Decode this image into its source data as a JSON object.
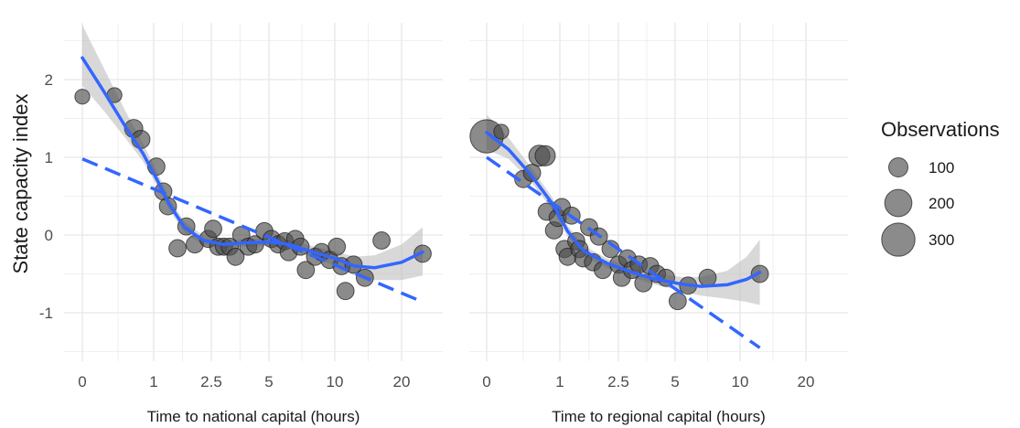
{
  "chart_data": {
    "type": "scatter",
    "ylabel": "State capacity index",
    "ylim": [
      -1.55,
      2.75
    ],
    "y_ticks": [
      {
        "v": 2,
        "label": "2"
      },
      {
        "v": 1,
        "label": "1"
      },
      {
        "v": 0,
        "label": "0"
      },
      {
        "v": -1,
        "label": "-1"
      }
    ],
    "grid": true,
    "x_scale": "transformed (hours)",
    "colors": {
      "points": "#4d4d4d",
      "fit_smooth": "#3366ff",
      "fit_linear": "#3366ff",
      "ribbon": "#bebebe",
      "grid": "#ebebeb"
    },
    "legend": {
      "title": "Observations",
      "placement": "right",
      "entries": [
        {
          "label": "100",
          "value": 100
        },
        {
          "label": "200",
          "value": 200
        },
        {
          "label": "300",
          "value": 300
        }
      ]
    },
    "panels": [
      {
        "xlabel": "Time to national capital (hours)",
        "x_ticks": [
          {
            "v": 0,
            "label": "0"
          },
          {
            "v": 1,
            "label": "1"
          },
          {
            "v": 2.5,
            "label": "2.5"
          },
          {
            "v": 5,
            "label": "5"
          },
          {
            "v": 10,
            "label": "10"
          },
          {
            "v": 20,
            "label": "20"
          }
        ],
        "points": [
          {
            "x": 0.0,
            "y": 1.78,
            "n": 60
          },
          {
            "x": 0.45,
            "y": 1.8,
            "n": 60
          },
          {
            "x": 0.72,
            "y": 1.37,
            "n": 90
          },
          {
            "x": 0.82,
            "y": 1.23,
            "n": 90
          },
          {
            "x": 1.07,
            "y": 0.88,
            "n": 80
          },
          {
            "x": 1.25,
            "y": 0.56,
            "n": 80
          },
          {
            "x": 1.37,
            "y": 0.37,
            "n": 80
          },
          {
            "x": 1.62,
            "y": -0.17,
            "n": 80
          },
          {
            "x": 1.85,
            "y": 0.11,
            "n": 80
          },
          {
            "x": 2.07,
            "y": -0.12,
            "n": 80
          },
          {
            "x": 2.42,
            "y": -0.05,
            "n": 80
          },
          {
            "x": 2.58,
            "y": 0.08,
            "n": 80
          },
          {
            "x": 2.8,
            "y": -0.15,
            "n": 80
          },
          {
            "x": 3.05,
            "y": -0.15,
            "n": 80
          },
          {
            "x": 3.3,
            "y": -0.15,
            "n": 80
          },
          {
            "x": 3.55,
            "y": -0.28,
            "n": 80
          },
          {
            "x": 3.8,
            "y": 0.0,
            "n": 80
          },
          {
            "x": 4.1,
            "y": -0.15,
            "n": 80
          },
          {
            "x": 4.4,
            "y": -0.12,
            "n": 80
          },
          {
            "x": 4.8,
            "y": 0.05,
            "n": 80
          },
          {
            "x": 5.2,
            "y": -0.05,
            "n": 80
          },
          {
            "x": 5.7,
            "y": -0.12,
            "n": 80
          },
          {
            "x": 6.2,
            "y": -0.08,
            "n": 80
          },
          {
            "x": 6.5,
            "y": -0.22,
            "n": 80
          },
          {
            "x": 7.0,
            "y": -0.05,
            "n": 80
          },
          {
            "x": 7.4,
            "y": -0.15,
            "n": 80
          },
          {
            "x": 7.8,
            "y": -0.45,
            "n": 80
          },
          {
            "x": 8.5,
            "y": -0.28,
            "n": 80
          },
          {
            "x": 9.0,
            "y": -0.22,
            "n": 80
          },
          {
            "x": 9.6,
            "y": -0.32,
            "n": 80
          },
          {
            "x": 10.3,
            "y": -0.15,
            "n": 80
          },
          {
            "x": 11.0,
            "y": -0.4,
            "n": 80
          },
          {
            "x": 11.6,
            "y": -0.72,
            "n": 80
          },
          {
            "x": 12.8,
            "y": -0.38,
            "n": 80
          },
          {
            "x": 14.5,
            "y": -0.55,
            "n": 80
          },
          {
            "x": 17.0,
            "y": -0.07,
            "n": 80
          },
          {
            "x": 24.0,
            "y": -0.24,
            "n": 80
          }
        ],
        "smooth": [
          {
            "x": 0,
            "y": 2.28,
            "lo": 1.92,
            "hi": 2.7
          },
          {
            "x": 0.3,
            "y": 1.85,
            "lo": 1.6,
            "hi": 2.15
          },
          {
            "x": 0.6,
            "y": 1.4,
            "lo": 1.25,
            "hi": 1.6
          },
          {
            "x": 0.85,
            "y": 1.05,
            "lo": 0.95,
            "hi": 1.18
          },
          {
            "x": 1.1,
            "y": 0.7,
            "lo": 0.62,
            "hi": 0.8
          },
          {
            "x": 1.4,
            "y": 0.4,
            "lo": 0.33,
            "hi": 0.48
          },
          {
            "x": 1.8,
            "y": 0.1,
            "lo": 0.03,
            "hi": 0.17
          },
          {
            "x": 2.3,
            "y": -0.07,
            "lo": -0.13,
            "hi": -0.01
          },
          {
            "x": 3.0,
            "y": -0.12,
            "lo": -0.17,
            "hi": -0.07
          },
          {
            "x": 4.0,
            "y": -0.1,
            "lo": -0.15,
            "hi": -0.05
          },
          {
            "x": 5.0,
            "y": -0.09,
            "lo": -0.14,
            "hi": -0.04
          },
          {
            "x": 6.5,
            "y": -0.12,
            "lo": -0.18,
            "hi": -0.06
          },
          {
            "x": 8.0,
            "y": -0.2,
            "lo": -0.27,
            "hi": -0.13
          },
          {
            "x": 10.0,
            "y": -0.3,
            "lo": -0.39,
            "hi": -0.21
          },
          {
            "x": 13.0,
            "y": -0.4,
            "lo": -0.52,
            "hi": -0.28
          },
          {
            "x": 16.0,
            "y": -0.42,
            "lo": -0.58,
            "hi": -0.26
          },
          {
            "x": 20.0,
            "y": -0.35,
            "lo": -0.58,
            "hi": -0.12
          },
          {
            "x": 24.0,
            "y": -0.22,
            "lo": -0.52,
            "hi": 0.1
          }
        ],
        "linear": [
          {
            "x": 0,
            "y": 0.98
          },
          {
            "x": 24.0,
            "y": -0.86
          }
        ]
      },
      {
        "xlabel": "Time to regional capital (hours)",
        "x_ticks": [
          {
            "v": 0,
            "label": "0"
          },
          {
            "v": 1,
            "label": "1"
          },
          {
            "v": 2.5,
            "label": "2.5"
          },
          {
            "v": 5,
            "label": "5"
          },
          {
            "v": 10,
            "label": "10"
          },
          {
            "v": 20,
            "label": "20"
          }
        ],
        "points": [
          {
            "x": 0.0,
            "y": 1.27,
            "n": 300
          },
          {
            "x": 0.2,
            "y": 1.33,
            "n": 60
          },
          {
            "x": 0.5,
            "y": 0.72,
            "n": 80
          },
          {
            "x": 0.62,
            "y": 0.8,
            "n": 80
          },
          {
            "x": 0.72,
            "y": 1.02,
            "n": 120
          },
          {
            "x": 0.8,
            "y": 1.02,
            "n": 110
          },
          {
            "x": 0.82,
            "y": 0.3,
            "n": 80
          },
          {
            "x": 0.92,
            "y": 0.06,
            "n": 80
          },
          {
            "x": 0.97,
            "y": 0.22,
            "n": 80
          },
          {
            "x": 1.05,
            "y": 0.36,
            "n": 80
          },
          {
            "x": 1.12,
            "y": -0.18,
            "n": 80
          },
          {
            "x": 1.2,
            "y": -0.28,
            "n": 80
          },
          {
            "x": 1.3,
            "y": 0.25,
            "n": 80
          },
          {
            "x": 1.42,
            "y": -0.08,
            "n": 80
          },
          {
            "x": 1.5,
            "y": -0.18,
            "n": 80
          },
          {
            "x": 1.6,
            "y": -0.3,
            "n": 80
          },
          {
            "x": 1.75,
            "y": 0.1,
            "n": 80
          },
          {
            "x": 1.85,
            "y": -0.35,
            "n": 80
          },
          {
            "x": 2.0,
            "y": -0.02,
            "n": 80
          },
          {
            "x": 2.1,
            "y": -0.45,
            "n": 80
          },
          {
            "x": 2.3,
            "y": -0.18,
            "n": 80
          },
          {
            "x": 2.5,
            "y": -0.38,
            "n": 80
          },
          {
            "x": 2.65,
            "y": -0.55,
            "n": 80
          },
          {
            "x": 2.9,
            "y": -0.3,
            "n": 80
          },
          {
            "x": 3.1,
            "y": -0.45,
            "n": 80
          },
          {
            "x": 3.4,
            "y": -0.38,
            "n": 80
          },
          {
            "x": 3.6,
            "y": -0.62,
            "n": 80
          },
          {
            "x": 3.9,
            "y": -0.4,
            "n": 80
          },
          {
            "x": 4.2,
            "y": -0.5,
            "n": 80
          },
          {
            "x": 4.6,
            "y": -0.55,
            "n": 80
          },
          {
            "x": 5.2,
            "y": -0.85,
            "n": 80
          },
          {
            "x": 6.0,
            "y": -0.65,
            "n": 80
          },
          {
            "x": 7.5,
            "y": -0.55,
            "n": 80
          },
          {
            "x": 13.0,
            "y": -0.5,
            "n": 80
          }
        ],
        "smooth": [
          {
            "x": 0,
            "y": 1.32,
            "lo": 1.1,
            "hi": 1.55
          },
          {
            "x": 0.3,
            "y": 1.1,
            "lo": 0.98,
            "hi": 1.25
          },
          {
            "x": 0.6,
            "y": 0.78,
            "lo": 0.69,
            "hi": 0.88
          },
          {
            "x": 0.9,
            "y": 0.4,
            "lo": 0.32,
            "hi": 0.48
          },
          {
            "x": 1.2,
            "y": 0.05,
            "lo": -0.02,
            "hi": 0.12
          },
          {
            "x": 1.6,
            "y": -0.2,
            "lo": -0.27,
            "hi": -0.13
          },
          {
            "x": 2.2,
            "y": -0.36,
            "lo": -0.42,
            "hi": -0.3
          },
          {
            "x": 3.0,
            "y": -0.47,
            "lo": -0.53,
            "hi": -0.41
          },
          {
            "x": 4.0,
            "y": -0.56,
            "lo": -0.63,
            "hi": -0.49
          },
          {
            "x": 5.5,
            "y": -0.63,
            "lo": -0.72,
            "hi": -0.54
          },
          {
            "x": 7.0,
            "y": -0.66,
            "lo": -0.78,
            "hi": -0.54
          },
          {
            "x": 9.0,
            "y": -0.64,
            "lo": -0.82,
            "hi": -0.46
          },
          {
            "x": 11.0,
            "y": -0.57,
            "lo": -0.86,
            "hi": -0.28
          },
          {
            "x": 13.0,
            "y": -0.48,
            "lo": -0.9,
            "hi": -0.06
          }
        ],
        "linear": [
          {
            "x": 0,
            "y": 1.0
          },
          {
            "x": 13.0,
            "y": -1.45
          }
        ]
      }
    ]
  }
}
